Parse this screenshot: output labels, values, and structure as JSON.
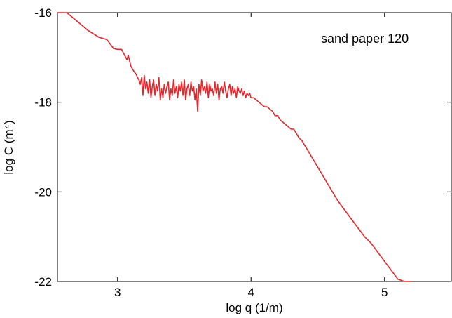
{
  "chart_data": {
    "type": "line",
    "title": "",
    "xlabel": "log q (1/m)",
    "ylabel": "log C (m⁴)",
    "xlim": [
      2.55,
      5.5
    ],
    "ylim": [
      -22,
      -16
    ],
    "xticks": [
      3,
      4,
      5
    ],
    "yticks": [
      -16,
      -18,
      -20,
      -22
    ],
    "xtick_labels": [
      "3",
      "4",
      "5"
    ],
    "ytick_labels": [
      "-16",
      "-18",
      "-20",
      "-22"
    ],
    "grid": false,
    "annotation": "sand paper 120",
    "series": [
      {
        "color": "#e8262b",
        "x": [
          2.55,
          2.62,
          2.7,
          2.78,
          2.86,
          2.92,
          2.97,
          3.0,
          3.03,
          3.07,
          3.08,
          3.1,
          3.12,
          3.14,
          3.15,
          3.16,
          3.17,
          3.18,
          3.19,
          3.2,
          3.21,
          3.22,
          3.23,
          3.24,
          3.25,
          3.26,
          3.27,
          3.28,
          3.29,
          3.3,
          3.31,
          3.32,
          3.33,
          3.34,
          3.35,
          3.36,
          3.37,
          3.38,
          3.39,
          3.4,
          3.41,
          3.42,
          3.43,
          3.44,
          3.45,
          3.46,
          3.47,
          3.48,
          3.49,
          3.5,
          3.51,
          3.52,
          3.53,
          3.54,
          3.55,
          3.56,
          3.57,
          3.58,
          3.59,
          3.6,
          3.61,
          3.62,
          3.63,
          3.64,
          3.65,
          3.66,
          3.67,
          3.68,
          3.69,
          3.7,
          3.71,
          3.72,
          3.73,
          3.74,
          3.75,
          3.76,
          3.77,
          3.78,
          3.79,
          3.8,
          3.81,
          3.82,
          3.83,
          3.84,
          3.85,
          3.86,
          3.87,
          3.88,
          3.89,
          3.9,
          3.91,
          3.92,
          3.93,
          3.94,
          3.95,
          3.96,
          3.97,
          3.98,
          3.99,
          4.0,
          4.02,
          4.04,
          4.06,
          4.08,
          4.1,
          4.12,
          4.14,
          4.16,
          4.18,
          4.2,
          4.22,
          4.24,
          4.26,
          4.28,
          4.3,
          4.32,
          4.34,
          4.36,
          4.38,
          4.4,
          4.42,
          4.44,
          4.46,
          4.48,
          4.5,
          4.55,
          4.6,
          4.65,
          4.7,
          4.75,
          4.8,
          4.85,
          4.9,
          4.95,
          5.0,
          5.05,
          5.1,
          5.15,
          5.2
        ],
        "y": [
          -15.85,
          -16.0,
          -16.2,
          -16.4,
          -16.55,
          -16.6,
          -16.8,
          -16.82,
          -16.82,
          -17.05,
          -16.95,
          -17.2,
          -17.3,
          -17.38,
          -17.45,
          -17.5,
          -17.6,
          -17.45,
          -17.85,
          -17.4,
          -17.7,
          -17.55,
          -17.8,
          -17.5,
          -17.9,
          -17.65,
          -17.5,
          -17.85,
          -17.6,
          -17.75,
          -17.45,
          -17.95,
          -17.7,
          -17.9,
          -17.6,
          -17.8,
          -17.65,
          -17.55,
          -17.95,
          -17.7,
          -17.85,
          -17.5,
          -17.8,
          -17.65,
          -17.9,
          -17.6,
          -17.75,
          -17.55,
          -17.85,
          -17.5,
          -17.95,
          -17.7,
          -17.6,
          -17.85,
          -17.55,
          -17.75,
          -17.65,
          -17.95,
          -17.7,
          -18.2,
          -17.6,
          -17.85,
          -17.5,
          -17.75,
          -17.65,
          -17.8,
          -17.55,
          -17.9,
          -17.6,
          -17.75,
          -17.7,
          -17.85,
          -17.55,
          -17.8,
          -17.6,
          -17.95,
          -17.7,
          -17.65,
          -17.8,
          -17.55,
          -17.75,
          -17.9,
          -17.7,
          -17.6,
          -17.85,
          -17.65,
          -17.8,
          -17.7,
          -17.9,
          -17.65,
          -17.75,
          -17.8,
          -17.7,
          -17.85,
          -17.75,
          -17.9,
          -17.8,
          -17.85,
          -17.8,
          -17.9,
          -17.9,
          -17.95,
          -18.0,
          -18.05,
          -18.1,
          -18.1,
          -18.15,
          -18.2,
          -18.3,
          -18.3,
          -18.4,
          -18.45,
          -18.5,
          -18.55,
          -18.6,
          -18.6,
          -18.7,
          -18.8,
          -18.85,
          -18.95,
          -19.05,
          -19.15,
          -19.25,
          -19.35,
          -19.45,
          -19.7,
          -19.95,
          -20.2,
          -20.4,
          -20.6,
          -20.8,
          -21.0,
          -21.15,
          -21.35,
          -21.55,
          -21.75,
          -21.95,
          -22.15,
          -22.35
        ]
      }
    ]
  }
}
